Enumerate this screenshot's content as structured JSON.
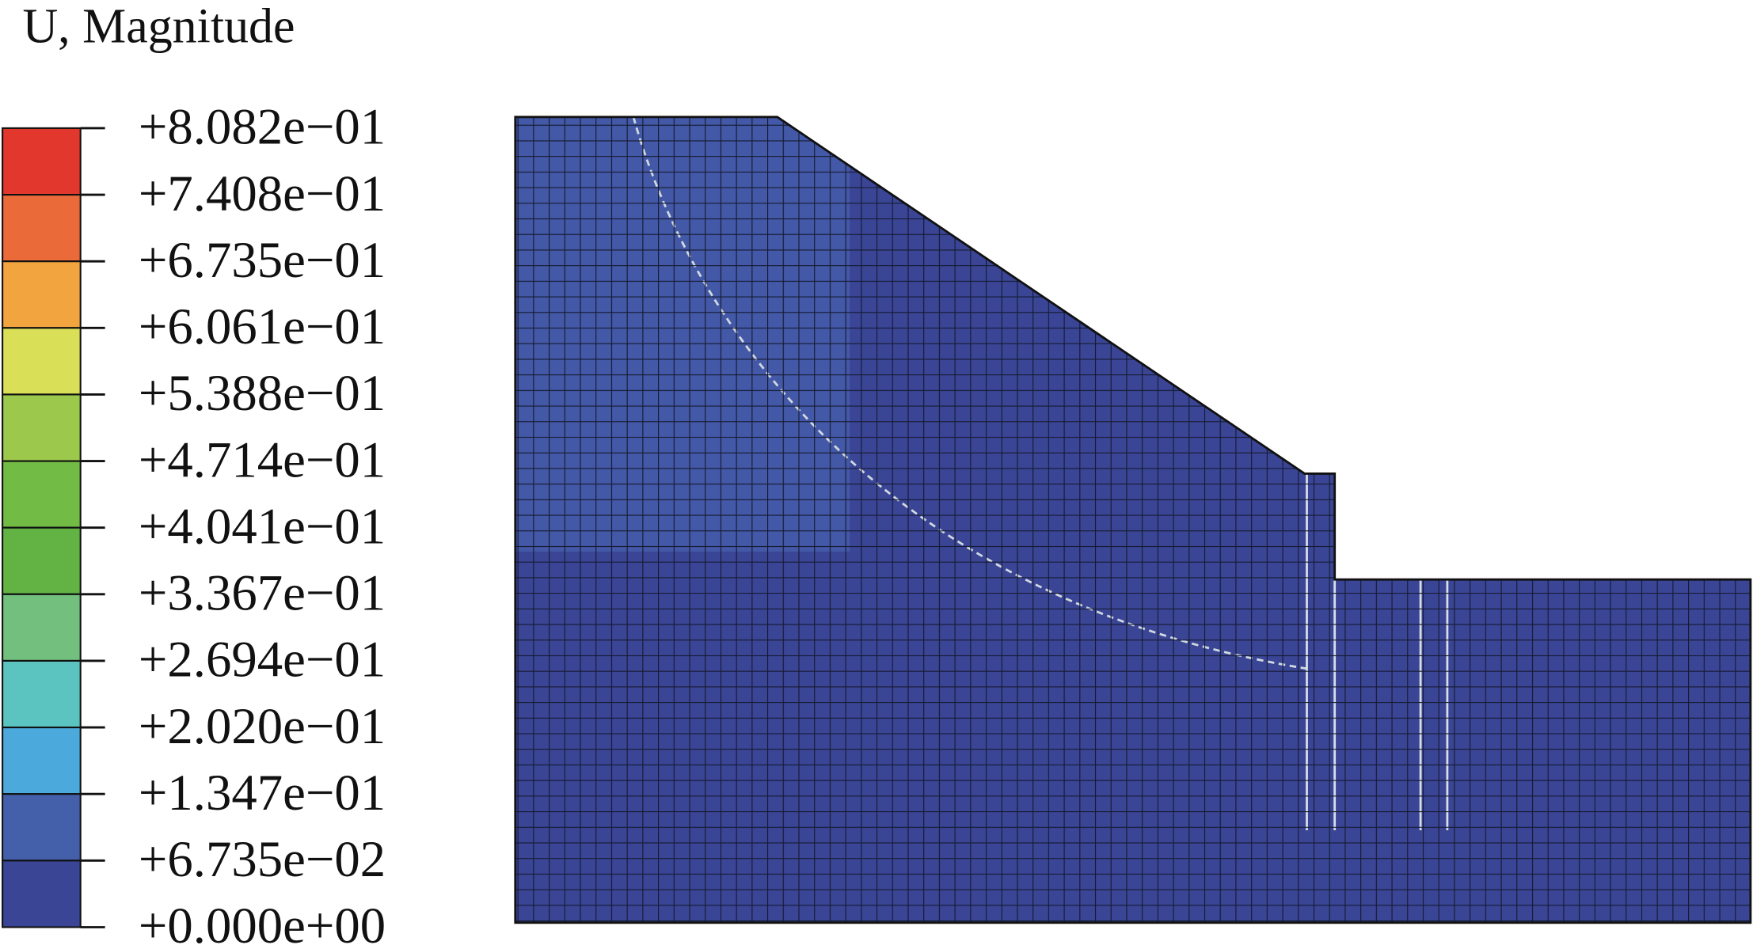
{
  "title": "U, Magnitude",
  "legend": {
    "labels": [
      "+8.082e−01",
      "+7.408e−01",
      "+6.735e−01",
      "+6.061e−01",
      "+5.388e−01",
      "+4.714e−01",
      "+4.041e−01",
      "+3.367e−01",
      "+2.694e−01",
      "+2.020e−01",
      "+1.347e−01",
      "+6.735e−02",
      "+0.000e+00"
    ],
    "colors": [
      "#e2372c",
      "#ea6a3a",
      "#f2a43f",
      "#d9e058",
      "#9cc84c",
      "#72bb45",
      "#62b244",
      "#72bf7e",
      "#5cc4c0",
      "#4ba9dc",
      "#4560aa",
      "#3a4596"
    ]
  }
}
